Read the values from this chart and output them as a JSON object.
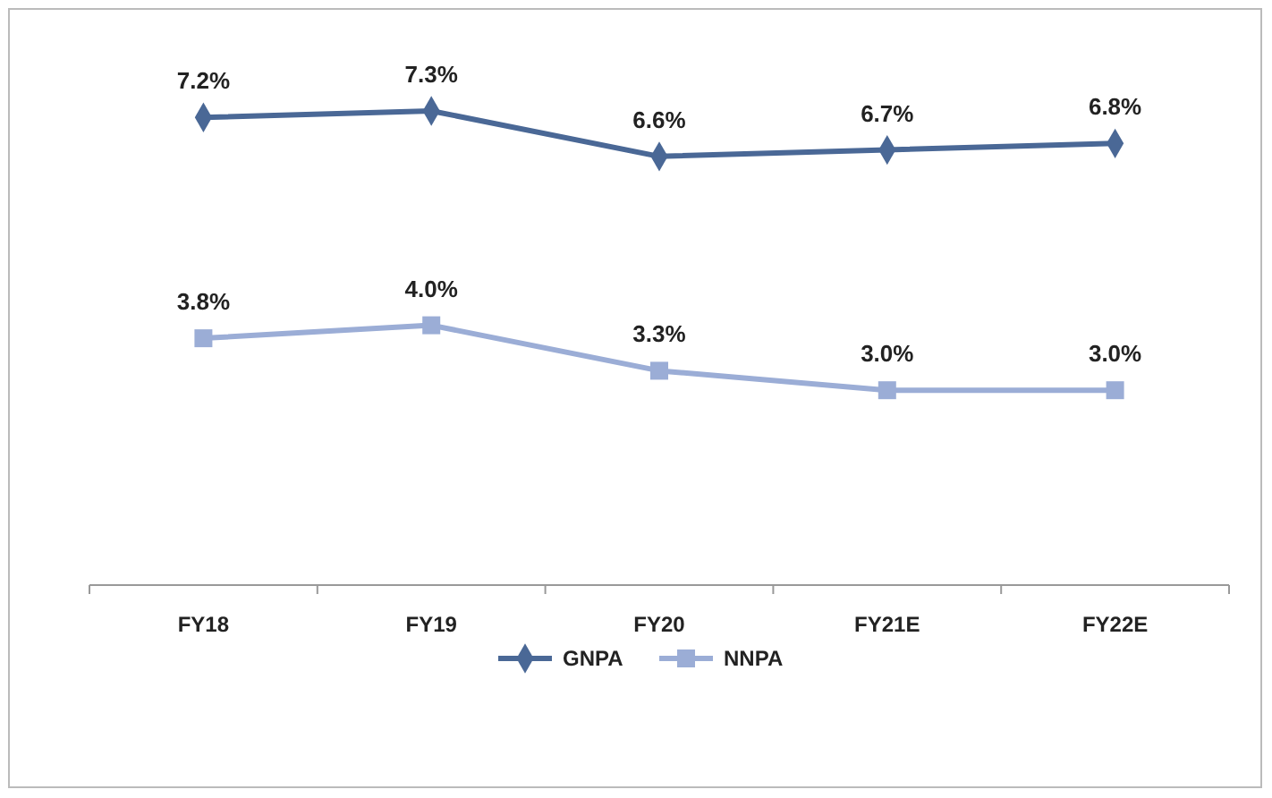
{
  "chart_data": {
    "type": "line",
    "categories": [
      "FY18",
      "FY19",
      "FY20",
      "FY21E",
      "FY22E"
    ],
    "series": [
      {
        "name": "GNPA",
        "color": "#4a6896",
        "marker": "diamond",
        "values": [
          7.2,
          7.3,
          6.6,
          6.7,
          6.8
        ],
        "value_labels": [
          "7.2%",
          "7.3%",
          "6.6%",
          "6.7%",
          "6.8%"
        ]
      },
      {
        "name": "NNPA",
        "color": "#9badd6",
        "marker": "square",
        "values": [
          3.8,
          4.0,
          3.3,
          3.0,
          3.0
        ],
        "value_labels": [
          "3.8%",
          "4.0%",
          "3.3%",
          "3.0%",
          "3.0%"
        ]
      }
    ],
    "tick_labels": "x",
    "grid": false,
    "legend": "bottom"
  }
}
